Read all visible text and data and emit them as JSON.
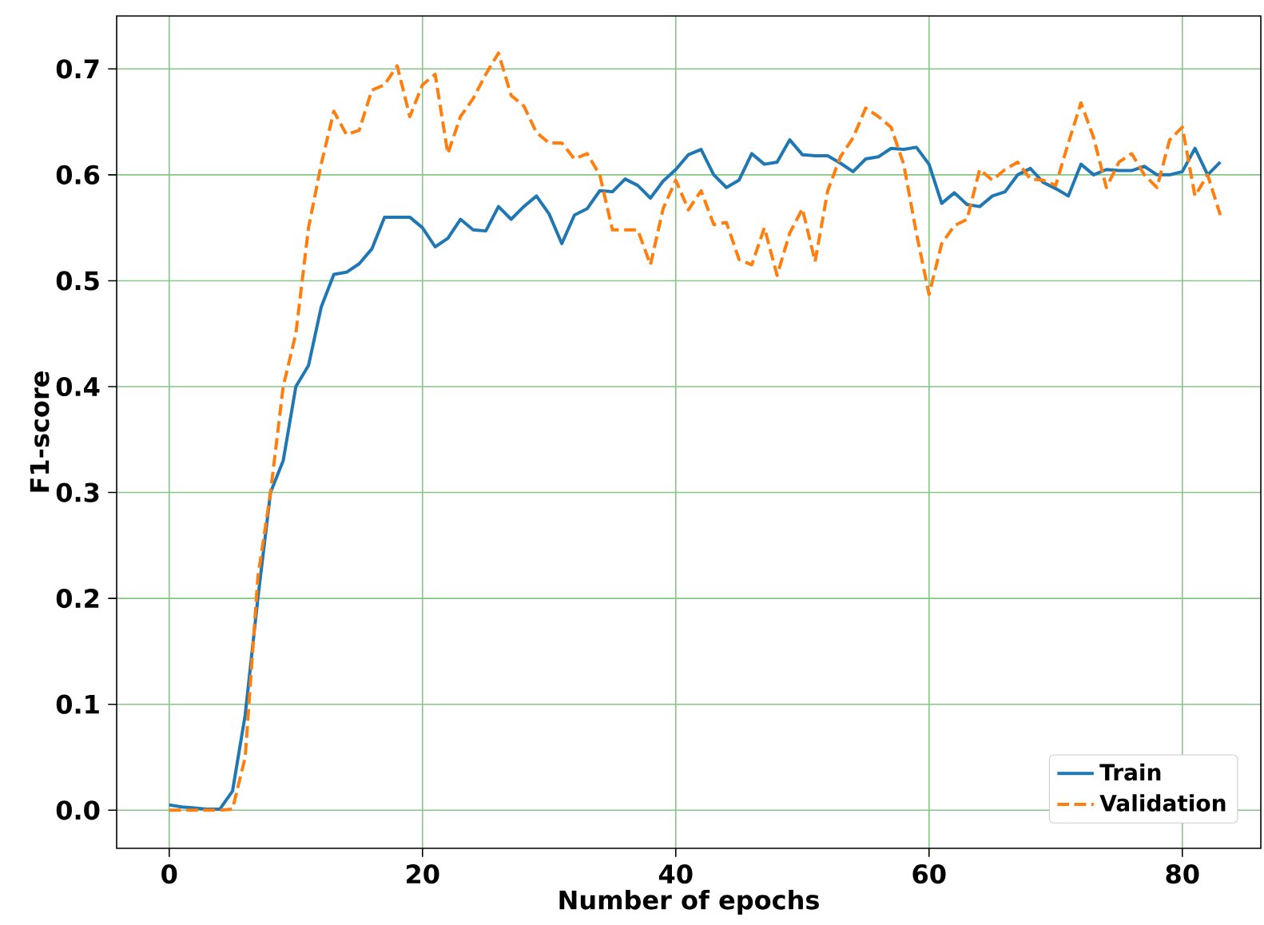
{
  "chart_data": {
    "type": "line",
    "xlabel": "Number of epochs",
    "ylabel": "F1-score",
    "x": [
      0,
      1,
      2,
      3,
      4,
      5,
      6,
      7,
      8,
      9,
      10,
      11,
      12,
      13,
      14,
      15,
      16,
      17,
      18,
      19,
      20,
      21,
      22,
      23,
      24,
      25,
      26,
      27,
      28,
      29,
      30,
      31,
      32,
      33,
      34,
      35,
      36,
      37,
      38,
      39,
      40,
      41,
      42,
      43,
      44,
      45,
      46,
      47,
      48,
      49,
      50,
      51,
      52,
      53,
      54,
      55,
      56,
      57,
      58,
      59,
      60,
      61,
      62,
      63,
      64,
      65,
      66,
      67,
      68,
      69,
      70,
      71,
      72,
      73,
      74,
      75,
      76,
      77,
      78,
      79,
      80,
      81,
      82,
      83
    ],
    "series": [
      {
        "name": "Train",
        "color": "#1f77b4",
        "line_style": "solid",
        "values": [
          0.005,
          0.003,
          0.002,
          0.001,
          0.001,
          0.018,
          0.09,
          0.2,
          0.3,
          0.33,
          0.4,
          0.42,
          0.475,
          0.506,
          0.508,
          0.516,
          0.53,
          0.56,
          0.56,
          0.56,
          0.55,
          0.532,
          0.54,
          0.558,
          0.548,
          0.547,
          0.57,
          0.558,
          0.57,
          0.58,
          0.563,
          0.535,
          0.562,
          0.568,
          0.585,
          0.584,
          0.596,
          0.59,
          0.578,
          0.594,
          0.605,
          0.619,
          0.624,
          0.6,
          0.588,
          0.595,
          0.62,
          0.61,
          0.612,
          0.633,
          0.619,
          0.618,
          0.618,
          0.611,
          0.603,
          0.615,
          0.617,
          0.625,
          0.624,
          0.626,
          0.61,
          0.573,
          0.583,
          0.572,
          0.57,
          0.58,
          0.584,
          0.6,
          0.606,
          0.593,
          0.587,
          0.58,
          0.61,
          0.6,
          0.605,
          0.604,
          0.604,
          0.608,
          0.6,
          0.6,
          0.603,
          0.625,
          0.6,
          0.612
        ]
      },
      {
        "name": "Validation",
        "color": "#ff7f0e",
        "line_style": "dashed",
        "values": [
          0,
          0,
          0,
          0,
          0,
          0.001,
          0.05,
          0.22,
          0.3,
          0.4,
          0.45,
          0.55,
          0.61,
          0.66,
          0.638,
          0.642,
          0.68,
          0.685,
          0.703,
          0.655,
          0.685,
          0.695,
          0.62,
          0.655,
          0.672,
          0.695,
          0.715,
          0.675,
          0.665,
          0.64,
          0.63,
          0.63,
          0.615,
          0.62,
          0.6,
          0.548,
          0.548,
          0.548,
          0.515,
          0.568,
          0.595,
          0.567,
          0.585,
          0.553,
          0.555,
          0.52,
          0.515,
          0.55,
          0.505,
          0.545,
          0.568,
          0.518,
          0.585,
          0.617,
          0.635,
          0.663,
          0.655,
          0.645,
          0.61,
          0.545,
          0.487,
          0.535,
          0.552,
          0.558,
          0.605,
          0.595,
          0.605,
          0.612,
          0.596,
          0.595,
          0.59,
          0.63,
          0.668,
          0.635,
          0.588,
          0.612,
          0.62,
          0.6,
          0.588,
          0.633,
          0.645,
          0.58,
          0.6,
          0.562
        ]
      }
    ],
    "xlim": [
      -4.15,
      86.2
    ],
    "ylim": [
      -0.036,
      0.75
    ],
    "xticks": [
      0,
      20,
      40,
      60,
      80
    ],
    "yticks": [
      {
        "value": 0,
        "label": "0.0"
      },
      {
        "value": 0.1,
        "label": "0.1"
      },
      {
        "value": 0.2,
        "label": "0.2"
      },
      {
        "value": 0.3,
        "label": "0.3"
      },
      {
        "value": 0.4,
        "label": "0.4"
      },
      {
        "value": 0.5,
        "label": "0.5"
      },
      {
        "value": 0.6,
        "label": "0.6"
      },
      {
        "value": 0.7,
        "label": "0.7"
      }
    ],
    "grid": true,
    "legend": "bottom right"
  }
}
